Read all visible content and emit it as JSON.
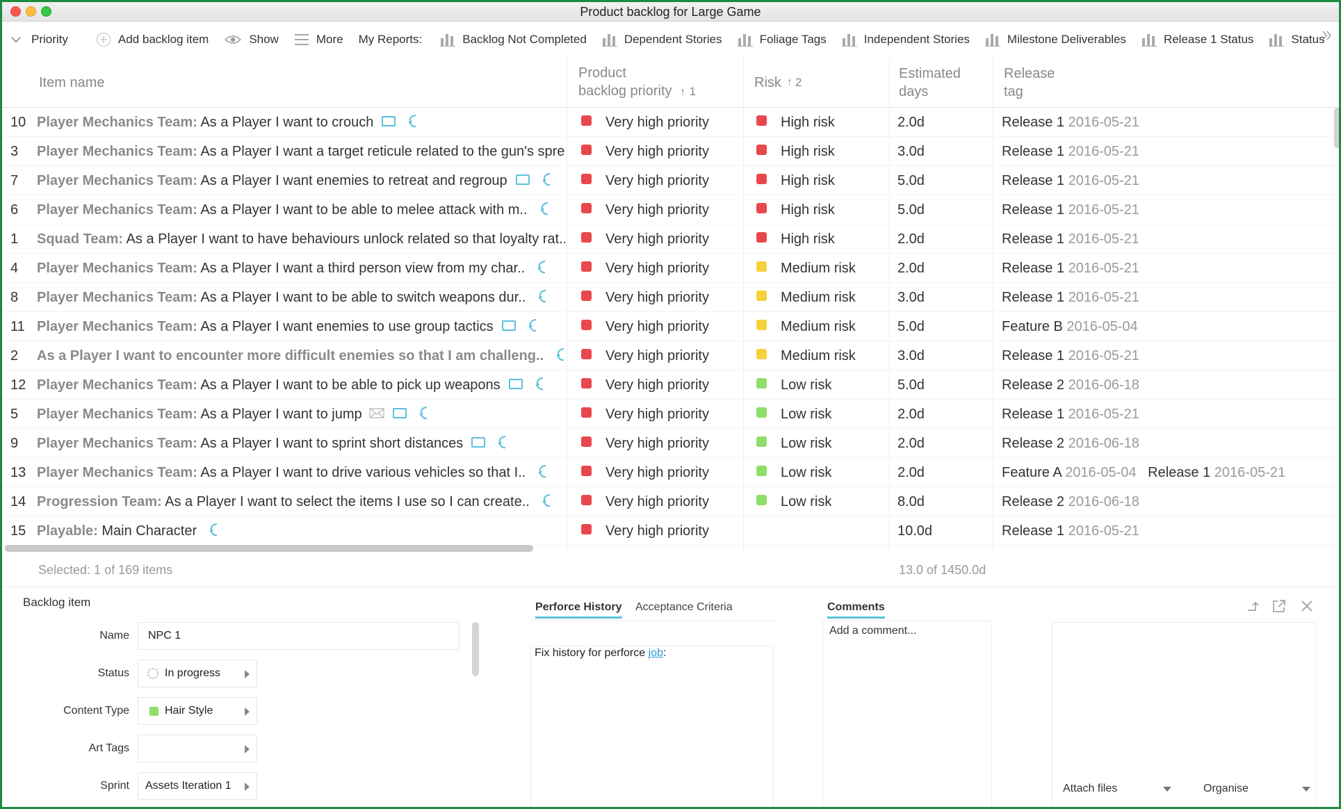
{
  "window": {
    "title": "Product backlog for Large Game"
  },
  "toolbar": {
    "priority_label": "Priority",
    "add_label": "Add backlog item",
    "show_label": "Show",
    "more_label": "More",
    "reports_label": "My Reports:",
    "reports": [
      "Backlog Not Completed",
      "Dependent Stories",
      "Foliage Tags",
      "Independent Stories",
      "Milestone Deliverables",
      "Release 1 Status",
      "Status"
    ],
    "overflow_icon": "double-chevron-right"
  },
  "columns": {
    "item_name": "Item name",
    "priority_line1": "Product",
    "priority_line2": "backlog priority",
    "priority_sort": "1",
    "risk": "Risk",
    "risk_sort": "2",
    "days_line1": "Estimated",
    "days_line2": "days",
    "release_line1": "Release",
    "release_line2": "tag"
  },
  "colors": {
    "very_high": "#e8484d",
    "high": "#e8484d",
    "medium": "#f5d23b",
    "low": "#8fde6a",
    "accent": "#5bc0de"
  },
  "rows": [
    {
      "id": "10",
      "team": "Player Mechanics Team:",
      "text": " As a Player I want to crouch",
      "comment": true,
      "link": true,
      "mail": false,
      "priority": "Very high priority",
      "risk": "High risk",
      "risk_level": "high",
      "days": "2.0d",
      "tag1": "Release 1",
      "date1": "2016-05-21",
      "tag2": "",
      "date2": ""
    },
    {
      "id": "3",
      "team": "Player Mechanics Team:",
      "text": " As a Player I want a target reticule related to the gun's spre..",
      "comment": false,
      "link": false,
      "mail": false,
      "priority": "Very high priority",
      "risk": "High risk",
      "risk_level": "high",
      "days": "3.0d",
      "tag1": "Release 1",
      "date1": "2016-05-21",
      "tag2": "",
      "date2": ""
    },
    {
      "id": "7",
      "team": "Player Mechanics Team:",
      "text": " As a Player I want enemies to retreat and regroup",
      "comment": true,
      "link": true,
      "mail": false,
      "priority": "Very high priority",
      "risk": "High risk",
      "risk_level": "high",
      "days": "5.0d",
      "tag1": "Release 1",
      "date1": "2016-05-21",
      "tag2": "",
      "date2": ""
    },
    {
      "id": "6",
      "team": "Player Mechanics Team:",
      "text": " As a Player I want to be able to melee attack with m..",
      "comment": false,
      "link": true,
      "mail": false,
      "priority": "Very high priority",
      "risk": "High risk",
      "risk_level": "high",
      "days": "5.0d",
      "tag1": "Release 1",
      "date1": "2016-05-21",
      "tag2": "",
      "date2": ""
    },
    {
      "id": "1",
      "team": "Squad Team:",
      "text": " As a Player I want to have behaviours unlock related so that loyalty rat..",
      "comment": false,
      "link": false,
      "mail": false,
      "priority": "Very high priority",
      "risk": "High risk",
      "risk_level": "high",
      "days": "2.0d",
      "tag1": "Release 1",
      "date1": "2016-05-21",
      "tag2": "",
      "date2": ""
    },
    {
      "id": "4",
      "team": "Player Mechanics Team:",
      "text": " As a Player I want a third person view from my char..",
      "comment": false,
      "link": true,
      "mail": false,
      "priority": "Very high priority",
      "risk": "Medium risk",
      "risk_level": "medium",
      "days": "2.0d",
      "tag1": "Release 1",
      "date1": "2016-05-21",
      "tag2": "",
      "date2": ""
    },
    {
      "id": "8",
      "team": "Player Mechanics Team:",
      "text": " As a Player I want to be able to switch weapons dur..",
      "comment": false,
      "link": true,
      "mail": false,
      "priority": "Very high priority",
      "risk": "Medium risk",
      "risk_level": "medium",
      "days": "3.0d",
      "tag1": "Release 1",
      "date1": "2016-05-21",
      "tag2": "",
      "date2": ""
    },
    {
      "id": "11",
      "team": "Player Mechanics Team:",
      "text": " As a Player I want enemies to use group tactics",
      "comment": true,
      "link": true,
      "mail": false,
      "priority": "Very high priority",
      "risk": "Medium risk",
      "risk_level": "medium",
      "days": "5.0d",
      "tag1": "Feature B",
      "date1": "2016-05-04",
      "tag2": "",
      "date2": ""
    },
    {
      "id": "2",
      "team": "As a Player I want to encounter more difficult enemies so that I am challeng..",
      "text": "",
      "comment": false,
      "link": true,
      "mail": false,
      "priority": "Very high priority",
      "risk": "Medium risk",
      "risk_level": "medium",
      "days": "3.0d",
      "tag1": "Release 1",
      "date1": "2016-05-21",
      "tag2": "",
      "date2": ""
    },
    {
      "id": "12",
      "team": "Player Mechanics Team:",
      "text": " As a Player I want to be able to pick up weapons",
      "comment": true,
      "link": true,
      "mail": false,
      "priority": "Very high priority",
      "risk": "Low risk",
      "risk_level": "low",
      "days": "5.0d",
      "tag1": "Release 2",
      "date1": "2016-06-18",
      "tag2": "",
      "date2": ""
    },
    {
      "id": "5",
      "team": "Player Mechanics Team:",
      "text": " As a Player I want to jump",
      "comment": true,
      "link": true,
      "mail": true,
      "priority": "Very high priority",
      "risk": "Low risk",
      "risk_level": "low",
      "days": "2.0d",
      "tag1": "Release 1",
      "date1": "2016-05-21",
      "tag2": "",
      "date2": ""
    },
    {
      "id": "9",
      "team": "Player Mechanics Team:",
      "text": " As a Player I want to sprint short distances",
      "comment": true,
      "link": true,
      "mail": false,
      "priority": "Very high priority",
      "risk": "Low risk",
      "risk_level": "low",
      "days": "2.0d",
      "tag1": "Release 2",
      "date1": "2016-06-18",
      "tag2": "",
      "date2": ""
    },
    {
      "id": "13",
      "team": "Player Mechanics Team:",
      "text": " As a Player I want to drive various vehicles so that I..",
      "comment": false,
      "link": true,
      "mail": false,
      "priority": "Very high priority",
      "risk": "Low risk",
      "risk_level": "low",
      "days": "2.0d",
      "tag1": "Feature A",
      "date1": "2016-05-04",
      "tag2": "Release 1",
      "date2": "2016-05-21"
    },
    {
      "id": "14",
      "team": "Progression Team:",
      "text": " As a Player I want to select the items I use so I can create..",
      "comment": false,
      "link": true,
      "mail": false,
      "priority": "Very high priority",
      "risk": "Low risk",
      "risk_level": "low",
      "days": "8.0d",
      "tag1": "Release 2",
      "date1": "2016-06-18",
      "tag2": "",
      "date2": ""
    },
    {
      "id": "15",
      "team": "Playable:",
      "text": " Main Character",
      "comment": false,
      "link": true,
      "mail": false,
      "priority": "Very high priority",
      "risk": "",
      "risk_level": "",
      "days": "10.0d",
      "tag1": "Release 1",
      "date1": "2016-05-21",
      "tag2": "",
      "date2": ""
    }
  ],
  "footer": {
    "selected": "Selected: 1 of 169 items",
    "total": "13.0 of 1450.0d"
  },
  "detail": {
    "title": "Backlog item",
    "fields": {
      "name_label": "Name",
      "name_value": "NPC 1",
      "status_label": "Status",
      "status_value": "In progress",
      "content_type_label": "Content Type",
      "content_type_value": "Hair Style",
      "art_tags_label": "Art Tags",
      "art_tags_value": "",
      "sprint_label": "Sprint",
      "sprint_value": "Assets Iteration 1"
    },
    "tabs": {
      "history": "Perforce History",
      "acceptance": "Acceptance Criteria",
      "comments": "Comments"
    },
    "history_prefix": "Fix history for perforce ",
    "history_link": "job",
    "history_suffix": ":",
    "add_comment": "Add a comment...",
    "attach_files": "Attach files",
    "organise": "Organise"
  }
}
